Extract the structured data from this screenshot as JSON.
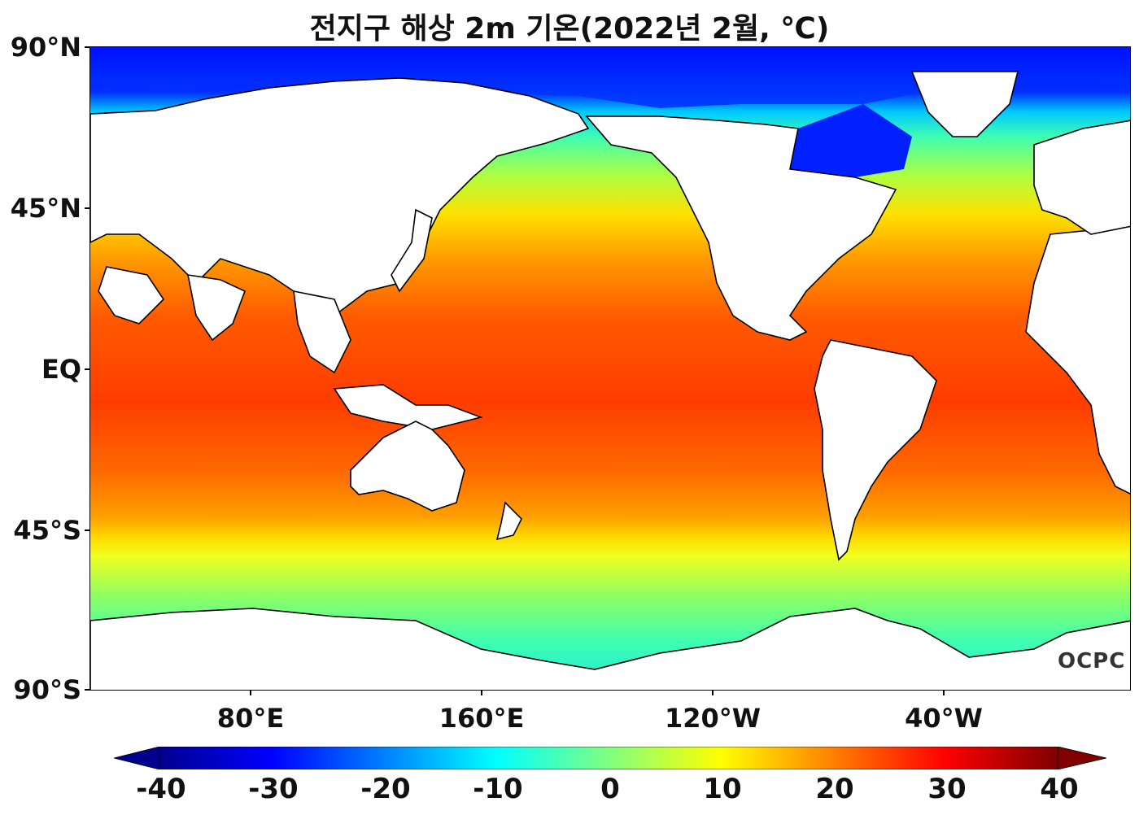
{
  "title": "전지구 해상 2m 기온(2022년 2월, ℃)",
  "lat_labels": [
    "90°N",
    "45°N",
    "EQ",
    "45°S",
    "90°S"
  ],
  "lon_labels": [
    "80°E",
    "160°E",
    "120°W",
    "40°W"
  ],
  "colorbar": {
    "ticks": [
      "-40",
      "-30",
      "-20",
      "-10",
      "0",
      "10",
      "20",
      "30",
      "40"
    ],
    "colors": [
      "#00008f",
      "#0000ff",
      "#0080ff",
      "#00ffff",
      "#80ff80",
      "#ffff00",
      "#ff8000",
      "#ff0000",
      "#800000"
    ],
    "extend": "both"
  },
  "logo_text": "OCPC",
  "colors": {
    "land": "#ffffff",
    "coastline": "#000000",
    "polar": "#0010ff",
    "tropics": "#ff3c00"
  }
}
